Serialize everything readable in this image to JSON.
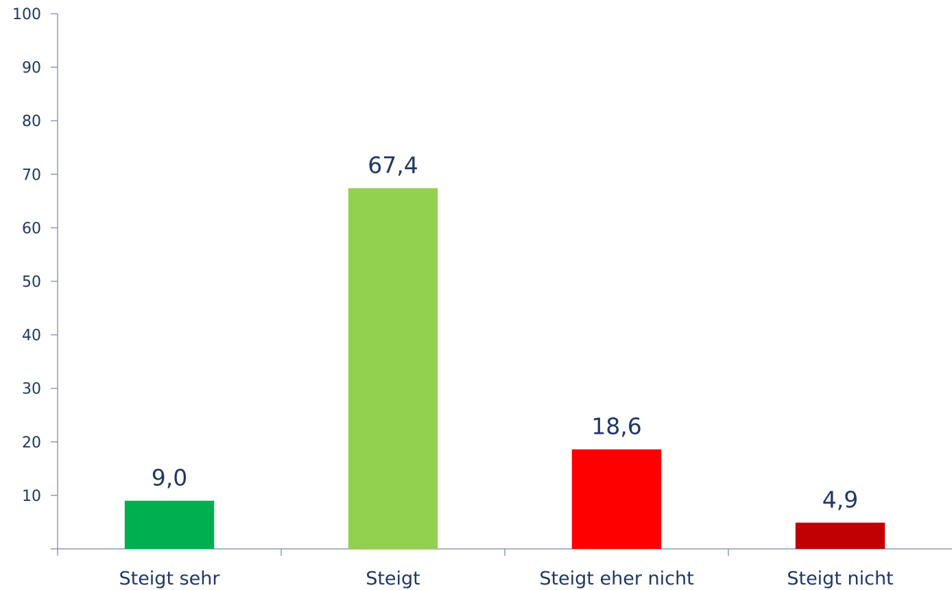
{
  "chart_data": {
    "type": "bar",
    "categories": [
      "Steigt sehr",
      "Steigt",
      "Steigt eher nicht",
      "Steigt nicht"
    ],
    "values": [
      9.0,
      67.4,
      18.6,
      4.9
    ],
    "data_labels": [
      "9,0",
      "67,4",
      "18,6",
      "4,9"
    ],
    "colors": [
      "#00b050",
      "#92d050",
      "#ff0000",
      "#c00000"
    ],
    "ylim": [
      0,
      100
    ],
    "yticks": [
      10,
      20,
      30,
      40,
      50,
      60,
      70,
      80,
      90,
      100
    ],
    "ytick_labels": [
      "10",
      "20",
      "30",
      "40",
      "50",
      "60",
      "70",
      "80",
      "90",
      "100"
    ],
    "grid": false,
    "title": "",
    "xlabel": "",
    "ylabel": ""
  }
}
